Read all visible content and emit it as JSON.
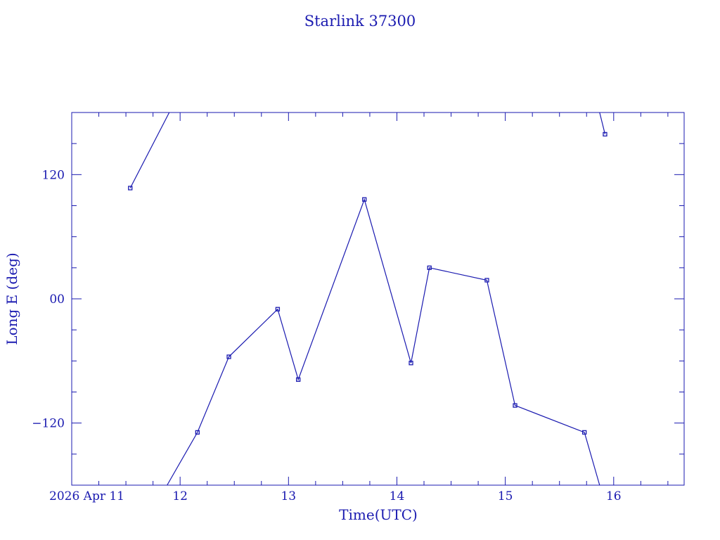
{
  "colors": {
    "ink": "#1a1ab0",
    "background": "#ffffff"
  },
  "chart_data": {
    "type": "line",
    "title": "Starlink 37300",
    "xlabel": "Time(UTC)",
    "ylabel": "Long E (deg)",
    "x_unit": "hours UTC, 2026 Apr 11",
    "xlim": [
      11.0,
      16.65
    ],
    "ylim": [
      -180,
      180
    ],
    "grid": false,
    "x_ticks": [
      {
        "value": 11,
        "label": "2026 Apr 11"
      },
      {
        "value": 12,
        "label": "12"
      },
      {
        "value": 13,
        "label": "13"
      },
      {
        "value": 14,
        "label": "14"
      },
      {
        "value": 15,
        "label": "15"
      },
      {
        "value": 16,
        "label": "16"
      }
    ],
    "y_ticks": [
      {
        "value": 120,
        "label": "120"
      },
      {
        "value": 0,
        "label": "00"
      },
      {
        "value": -120,
        "label": "−120"
      }
    ],
    "x_minor_step": 0.25,
    "y_minor_step": 30,
    "points": [
      {
        "x": 11.54,
        "y": 107
      },
      {
        "x": 12.16,
        "y": -129
      },
      {
        "x": 12.45,
        "y": -56
      },
      {
        "x": 12.9,
        "y": -10
      },
      {
        "x": 13.09,
        "y": -78
      },
      {
        "x": 13.7,
        "y": 96
      },
      {
        "x": 14.13,
        "y": -62
      },
      {
        "x": 14.3,
        "y": 30
      },
      {
        "x": 14.83,
        "y": 18
      },
      {
        "x": 15.09,
        "y": -103
      },
      {
        "x": 15.73,
        "y": -129
      },
      {
        "x": 15.92,
        "y": 159
      }
    ],
    "segments": [
      [
        {
          "x": 11.54,
          "y": 107
        },
        {
          "x": 11.9,
          "y": 180
        }
      ],
      [
        {
          "x": 11.88,
          "y": -180
        },
        {
          "x": 12.16,
          "y": -129
        },
        {
          "x": 12.45,
          "y": -56
        },
        {
          "x": 12.9,
          "y": -10
        },
        {
          "x": 13.09,
          "y": -78
        },
        {
          "x": 13.7,
          "y": 96
        },
        {
          "x": 14.13,
          "y": -62
        },
        {
          "x": 14.3,
          "y": 30
        },
        {
          "x": 14.83,
          "y": 18
        },
        {
          "x": 15.09,
          "y": -103
        },
        {
          "x": 15.73,
          "y": -129
        },
        {
          "x": 15.87,
          "y": -180
        }
      ],
      [
        {
          "x": 15.87,
          "y": 180
        },
        {
          "x": 15.92,
          "y": 159
        }
      ]
    ]
  }
}
